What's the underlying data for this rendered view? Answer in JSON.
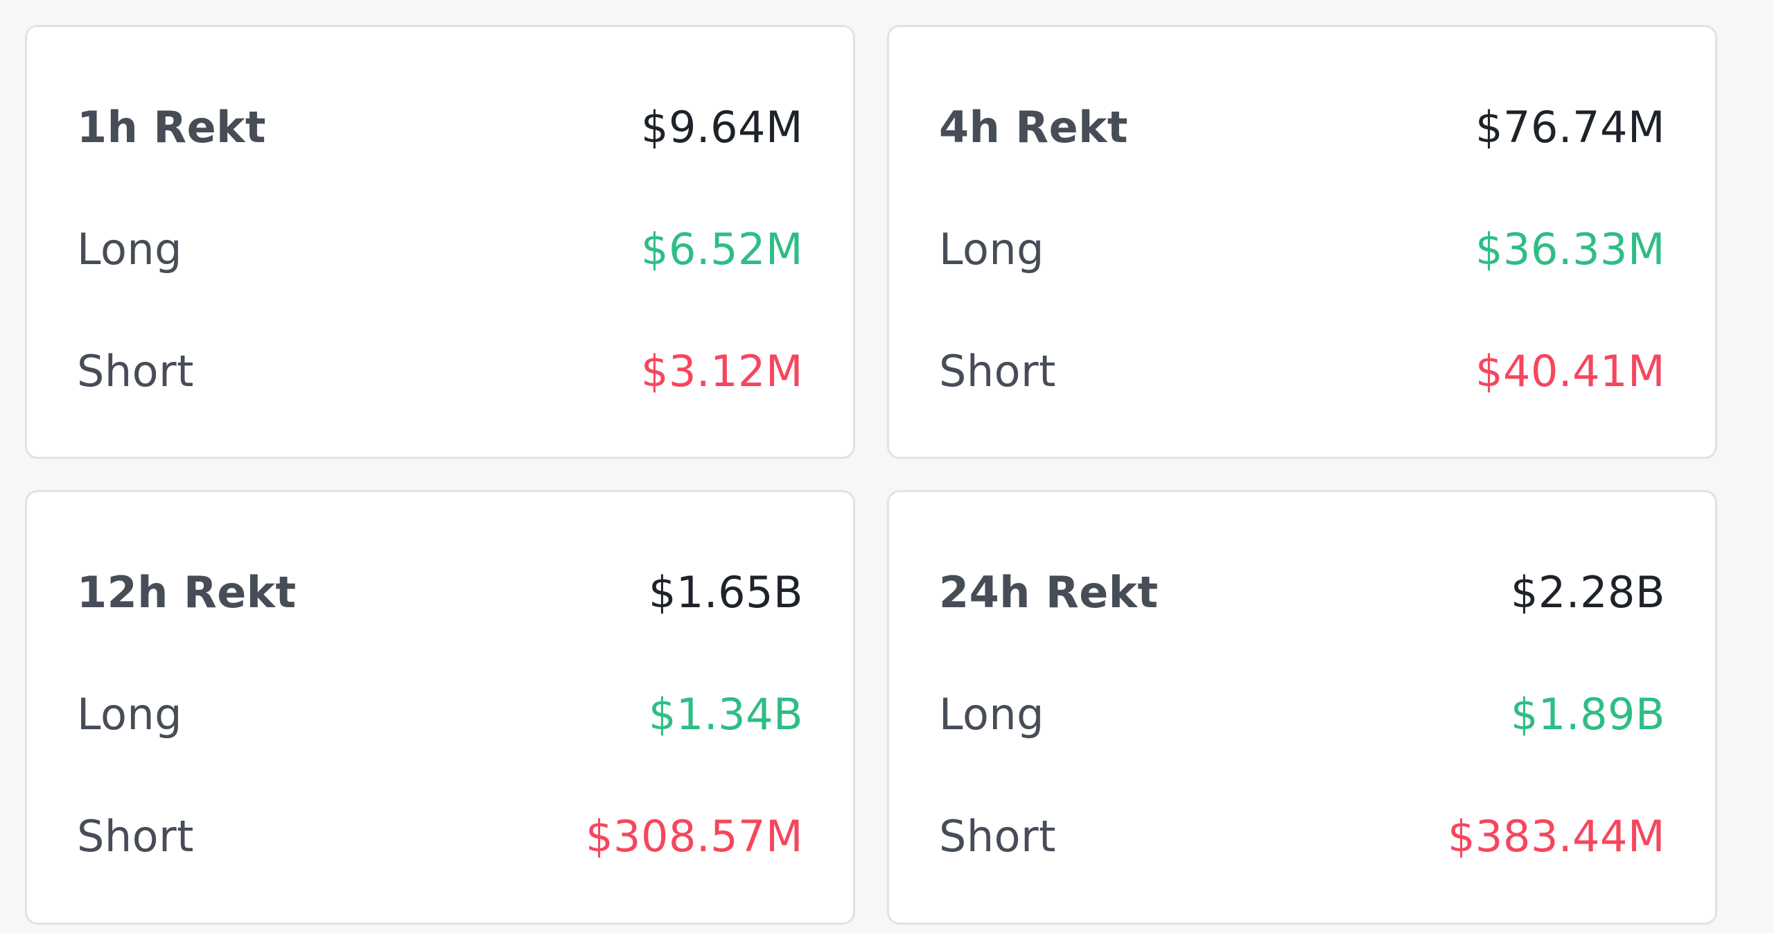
{
  "colors": {
    "long": "#2ebd85",
    "short": "#f6465d",
    "total": "#1e2329",
    "label": "#474d57",
    "background": "#f7f7f7",
    "card": "#ffffff"
  },
  "labels": {
    "long": "Long",
    "short": "Short"
  },
  "cards": [
    {
      "title": "1h Rekt",
      "total": "$9.64M",
      "long": "$6.52M",
      "short": "$3.12M"
    },
    {
      "title": "4h Rekt",
      "total": "$76.74M",
      "long": "$36.33M",
      "short": "$40.41M"
    },
    {
      "title": "12h Rekt",
      "total": "$1.65B",
      "long": "$1.34B",
      "short": "$308.57M"
    },
    {
      "title": "24h Rekt",
      "total": "$2.28B",
      "long": "$1.89B",
      "short": "$383.44M"
    }
  ]
}
